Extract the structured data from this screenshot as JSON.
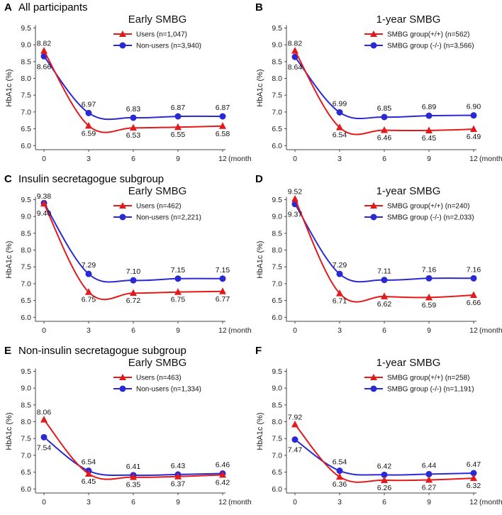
{
  "figure": {
    "y_axis_label": "HbA1c (%)",
    "x_unit_label": "(months)",
    "colors": {
      "users": "#e31a1c",
      "nonusers": "#2a2ad4",
      "axis": "#444444"
    }
  },
  "chart_data": [
    {
      "panel": "A",
      "heading": "All participants",
      "subtitle": "Early SMBG",
      "type": "line",
      "x": [
        0,
        3,
        6,
        9,
        12
      ],
      "xticks": [
        "0",
        "3",
        "6",
        "9",
        "12"
      ],
      "ylim": [
        5.9,
        9.7
      ],
      "yticks": [
        "6.0",
        "6.5",
        "7.0",
        "7.5",
        "8.0",
        "8.5",
        "9.0",
        "9.5"
      ],
      "series": [
        {
          "name": "Users",
          "legend": "Users (n=1,047)",
          "marker": "triangle",
          "values": [
            8.82,
            6.59,
            6.53,
            6.55,
            6.58
          ],
          "labels": [
            "8.82",
            "6.59",
            "6.53",
            "6.55",
            "6.58"
          ]
        },
        {
          "name": "Non-users",
          "legend": "Non-users (n=3,940)",
          "marker": "circle",
          "values": [
            8.66,
            6.97,
            6.83,
            6.87,
            6.87
          ],
          "labels": [
            "8.66",
            "6.97",
            "6.83",
            "6.87",
            "6.87"
          ]
        }
      ]
    },
    {
      "panel": "B",
      "heading": "",
      "subtitle": "1-year SMBG",
      "type": "line",
      "x": [
        0,
        3,
        6,
        9,
        12
      ],
      "xticks": [
        "0",
        "3",
        "6",
        "9",
        "12"
      ],
      "ylim": [
        5.9,
        9.7
      ],
      "yticks": [
        "6.0",
        "6.5",
        "7.0",
        "7.5",
        "8.0",
        "8.5",
        "9.0",
        "9.5"
      ],
      "series": [
        {
          "name": "SMBG group(+/+)",
          "legend": "SMBG group(+/+) (n=562)",
          "marker": "triangle",
          "values": [
            8.82,
            6.54,
            6.46,
            6.45,
            6.49
          ],
          "labels": [
            "8.82",
            "6.54",
            "6.46",
            "6.45",
            "6.49"
          ]
        },
        {
          "name": "SMBG group (-/-)",
          "legend": "SMBG group (-/-) (n=3,566)",
          "marker": "circle",
          "values": [
            8.64,
            6.99,
            6.85,
            6.89,
            6.9
          ],
          "labels": [
            "8.64",
            "6.99",
            "6.85",
            "6.89",
            "6.90"
          ]
        }
      ]
    },
    {
      "panel": "C",
      "heading": "Insulin secretagogue subgroup",
      "subtitle": "Early SMBG",
      "type": "line",
      "x": [
        0,
        3,
        6,
        9,
        12
      ],
      "xticks": [
        "0",
        "3",
        "6",
        "9",
        "12"
      ],
      "ylim": [
        5.9,
        9.7
      ],
      "yticks": [
        "6.0",
        "6.5",
        "7.0",
        "7.5",
        "8.0",
        "8.5",
        "9.0",
        "9.5"
      ],
      "series": [
        {
          "name": "Users",
          "legend": "Users (n=462)",
          "marker": "triangle",
          "values": [
            9.38,
            6.75,
            6.72,
            6.75,
            6.77
          ],
          "labels": [
            "9.38",
            "6.75",
            "6.72",
            "6.75",
            "6.77"
          ]
        },
        {
          "name": "Non-users",
          "legend": "Non-users (n=2,221)",
          "marker": "circle",
          "values": [
            9.4,
            7.29,
            7.1,
            7.15,
            7.15
          ],
          "labels": [
            "9.40",
            "7.29",
            "7.10",
            "7.15",
            "7.15"
          ]
        }
      ]
    },
    {
      "panel": "D",
      "heading": "",
      "subtitle": "1-year SMBG",
      "type": "line",
      "x": [
        0,
        3,
        6,
        9,
        12
      ],
      "xticks": [
        "0",
        "3",
        "6",
        "9",
        "12"
      ],
      "ylim": [
        5.9,
        9.7
      ],
      "yticks": [
        "6.0",
        "6.5",
        "7.0",
        "7.5",
        "8.0",
        "8.5",
        "9.0",
        "9.5"
      ],
      "series": [
        {
          "name": "SMBG group(+/+)",
          "legend": "SMBG group(+/+) (n=240)",
          "marker": "triangle",
          "values": [
            9.52,
            6.71,
            6.62,
            6.59,
            6.66
          ],
          "labels": [
            "9.52",
            "6.71",
            "6.62",
            "6.59",
            "6.66"
          ]
        },
        {
          "name": "SMBG group (-/-)",
          "legend": "SMBG group (-/-) (n=2,033)",
          "marker": "circle",
          "values": [
            9.37,
            7.29,
            7.11,
            7.16,
            7.16
          ],
          "labels": [
            "9.37",
            "7.29",
            "7.11",
            "7.16",
            "7.16"
          ]
        }
      ]
    },
    {
      "panel": "E",
      "heading": "Non-insulin secretagogue subgroup",
      "subtitle": "Early SMBG",
      "type": "line",
      "x": [
        0,
        3,
        6,
        9,
        12
      ],
      "xticks": [
        "0",
        "3",
        "6",
        "9",
        "12"
      ],
      "ylim": [
        5.9,
        9.7
      ],
      "yticks": [
        "6.0",
        "6.5",
        "7.0",
        "7.5",
        "8.0",
        "8.5",
        "9.0",
        "9.5"
      ],
      "series": [
        {
          "name": "Users",
          "legend": "Users (n=463)",
          "marker": "triangle",
          "values": [
            8.06,
            6.45,
            6.35,
            6.37,
            6.42
          ],
          "labels": [
            "8.06",
            "6.45",
            "6.35",
            "6.37",
            "6.42"
          ]
        },
        {
          "name": "Non-users",
          "legend": "Non-users (n=1,334)",
          "marker": "circle",
          "values": [
            7.54,
            6.54,
            6.41,
            6.43,
            6.46
          ],
          "labels": [
            "7.54",
            "6.54",
            "6.41",
            "6.43",
            "6.46"
          ]
        }
      ]
    },
    {
      "panel": "F",
      "heading": "",
      "subtitle": "1-year SMBG",
      "type": "line",
      "x": [
        0,
        3,
        6,
        9,
        12
      ],
      "xticks": [
        "0",
        "3",
        "6",
        "9",
        "12"
      ],
      "ylim": [
        5.9,
        9.7
      ],
      "yticks": [
        "6.0",
        "6.5",
        "7.0",
        "7.5",
        "8.0",
        "8.5",
        "9.0",
        "9.5"
      ],
      "series": [
        {
          "name": "SMBG group(+/+)",
          "legend": "SMBG group(+/+) (n=258)",
          "marker": "triangle",
          "values": [
            7.92,
            6.36,
            6.26,
            6.27,
            6.32
          ],
          "labels": [
            "7.92",
            "6.36",
            "6.26",
            "6.27",
            "6.32"
          ]
        },
        {
          "name": "SMBG group (-/-)",
          "legend": "SMBG group (-/-) (n=1,191)",
          "marker": "circle",
          "values": [
            7.47,
            6.54,
            6.42,
            6.44,
            6.47
          ],
          "labels": [
            "7.47",
            "6.54",
            "6.42",
            "6.44",
            "6.47"
          ]
        }
      ]
    }
  ]
}
